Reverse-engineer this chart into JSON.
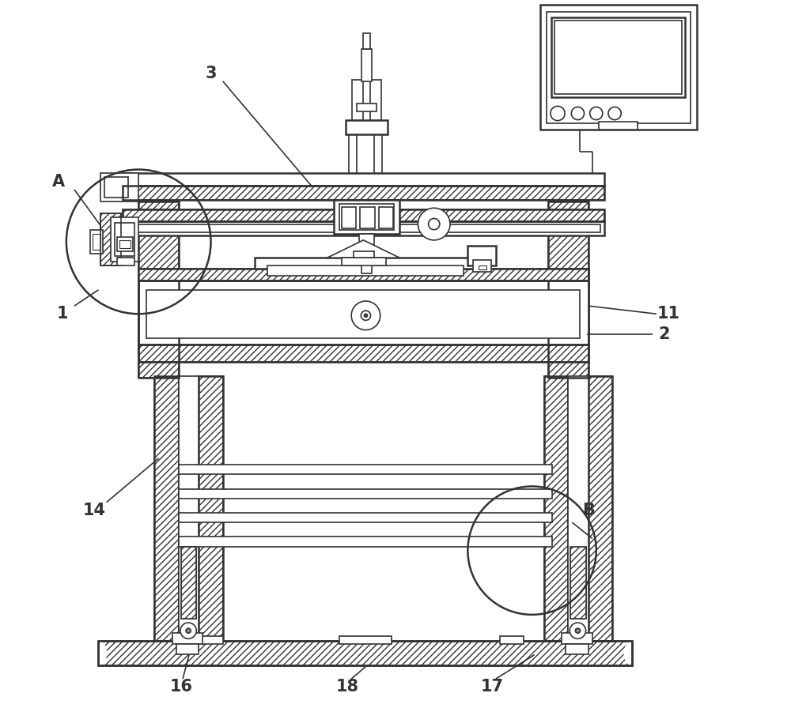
{
  "bg_color": "#ffffff",
  "lc": "#333333",
  "lw": 1.2,
  "lw2": 1.8,
  "fig_width": 10.0,
  "fig_height": 8.96
}
